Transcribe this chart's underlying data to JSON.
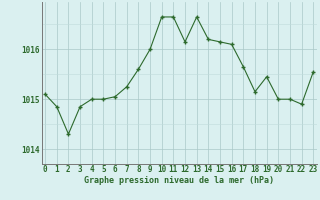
{
  "x": [
    0,
    1,
    2,
    3,
    4,
    5,
    6,
    7,
    8,
    9,
    10,
    11,
    12,
    13,
    14,
    15,
    16,
    17,
    18,
    19,
    20,
    21,
    22,
    23
  ],
  "y": [
    1015.1,
    1014.85,
    1014.3,
    1014.85,
    1015.0,
    1015.0,
    1015.05,
    1015.25,
    1015.6,
    1016.0,
    1016.65,
    1016.65,
    1016.15,
    1016.65,
    1016.2,
    1016.15,
    1016.1,
    1015.65,
    1015.15,
    1015.45,
    1015.0,
    1015.0,
    1014.9,
    1015.55
  ],
  "line_color": "#2d6a2d",
  "marker": "+",
  "marker_size": 3,
  "marker_linewidth": 1.0,
  "line_width": 0.8,
  "bg_color": "#daf0f0",
  "grid_color_major": "#aac8c8",
  "grid_color_minor": "#c0dcdc",
  "xlabel": "Graphe pression niveau de la mer (hPa)",
  "xlabel_color": "#2d6a2d",
  "xlabel_fontsize": 6.0,
  "yticks": [
    1014,
    1015,
    1016
  ],
  "ylim": [
    1013.7,
    1016.95
  ],
  "xlim": [
    -0.3,
    23.3
  ],
  "tick_color": "#2d6a2d",
  "tick_fontsize": 5.5,
  "ytick_fontsize": 5.5
}
